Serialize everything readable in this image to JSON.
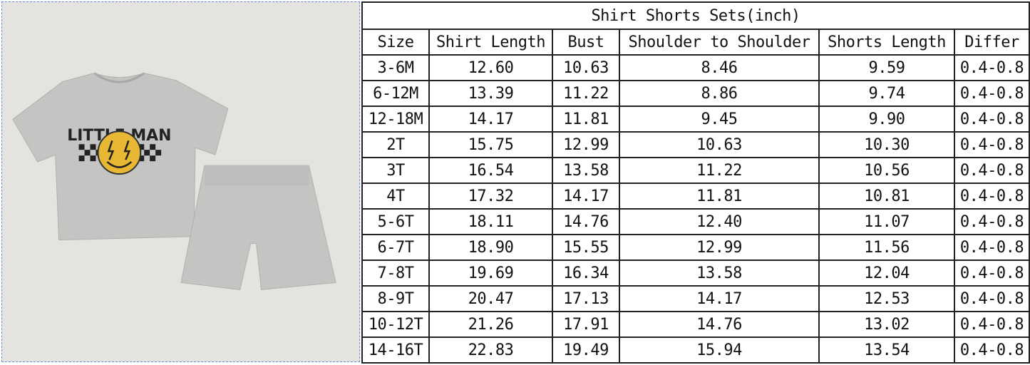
{
  "product": {
    "print_text": "LITTLE MAN",
    "colors": {
      "background": "#e4e3e0",
      "fabric": "#c4c4c2",
      "smiley": "#e8b733",
      "check": "#222222"
    }
  },
  "table": {
    "title": "Shirt Shorts Sets(inch)",
    "headers": [
      "Size",
      "Shirt Length",
      "Bust",
      "Shoulder to Shoulder",
      "Shorts Length",
      "Differ"
    ],
    "rows": [
      [
        "3-6M",
        "12.60",
        "10.63",
        "8.46",
        "9.59",
        "0.4-0.8"
      ],
      [
        "6-12M",
        "13.39",
        "11.22",
        "8.86",
        "9.74",
        "0.4-0.8"
      ],
      [
        "12-18M",
        "14.17",
        "11.81",
        "9.45",
        "9.90",
        "0.4-0.8"
      ],
      [
        "2T",
        "15.75",
        "12.99",
        "10.63",
        "10.30",
        "0.4-0.8"
      ],
      [
        "3T",
        "16.54",
        "13.58",
        "11.22",
        "10.56",
        "0.4-0.8"
      ],
      [
        "4T",
        "17.32",
        "14.17",
        "11.81",
        "10.81",
        "0.4-0.8"
      ],
      [
        "5-6T",
        "18.11",
        "14.76",
        "12.40",
        "11.07",
        "0.4-0.8"
      ],
      [
        "6-7T",
        "18.90",
        "15.55",
        "12.99",
        "11.56",
        "0.4-0.8"
      ],
      [
        "7-8T",
        "19.69",
        "16.34",
        "13.58",
        "12.04",
        "0.4-0.8"
      ],
      [
        "8-9T",
        "20.47",
        "17.13",
        "14.17",
        "12.53",
        "0.4-0.8"
      ],
      [
        "10-12T",
        "21.26",
        "17.91",
        "14.76",
        "13.02",
        "0.4-0.8"
      ],
      [
        "14-16T",
        "22.83",
        "19.49",
        "15.94",
        "13.54",
        "0.4-0.8"
      ]
    ]
  }
}
